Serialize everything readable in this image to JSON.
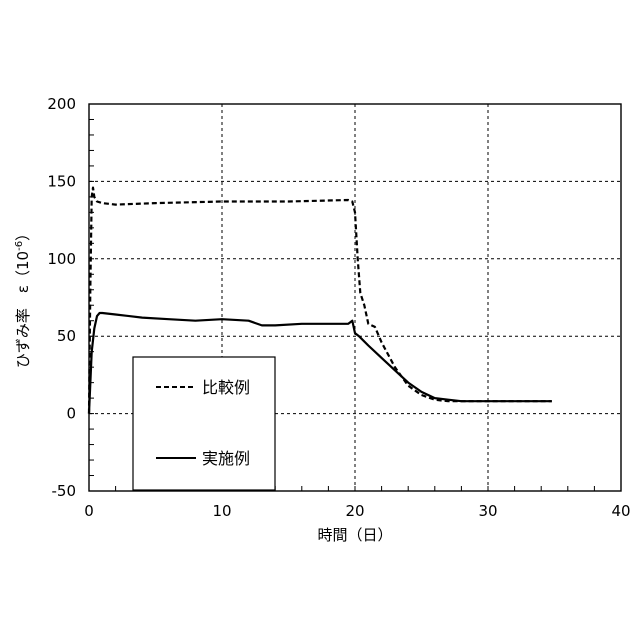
{
  "chart_data": {
    "type": "line",
    "xlabel": "時間（日）",
    "ylabel": "ひずみ率　ε（10",
    "ylabel_exp": "-6",
    "ylabel_close": "）",
    "xlim": [
      0,
      40
    ],
    "ylim": [
      -50,
      200
    ],
    "x_ticks": [
      0,
      10,
      20,
      30,
      40
    ],
    "y_ticks": [
      -50,
      0,
      50,
      100,
      150,
      200
    ],
    "x_tick_labels": [
      "0",
      "10",
      "20",
      "30",
      "40"
    ],
    "y_tick_labels": [
      "-50",
      "0",
      "50",
      "100",
      "150",
      "200"
    ],
    "grid": true,
    "legend_position": "lower-left",
    "series": [
      {
        "name": "比較例",
        "style": "dashed",
        "x": [
          0,
          0.1,
          0.2,
          0.3,
          0.4,
          0.6,
          1.0,
          2,
          5,
          10,
          15,
          19.5,
          19.8,
          20.0,
          20.2,
          20.4,
          20.7,
          21.0,
          21.5,
          22.0,
          23.0,
          24.0,
          25.0,
          26.0,
          27.0,
          28.0,
          30.0,
          32.0,
          34.8
        ],
        "y": [
          0,
          80,
          140,
          146,
          140,
          137,
          136,
          135,
          136,
          137,
          137,
          138,
          137,
          130,
          100,
          78,
          70,
          58,
          56,
          46,
          30,
          18,
          12,
          9,
          8,
          8,
          8,
          8,
          8
        ]
      },
      {
        "name": "実施例",
        "style": "solid",
        "x": [
          0,
          0.2,
          0.4,
          0.6,
          0.8,
          1.0,
          2,
          4,
          6,
          8,
          10,
          12,
          13,
          14,
          16,
          18,
          19.5,
          19.8,
          20.0,
          20.3,
          21.0,
          22.0,
          23.0,
          24.0,
          25.0,
          26.0,
          27.0,
          28.0,
          30.0,
          32.0,
          34.8
        ],
        "y": [
          0,
          40,
          55,
          63,
          65,
          65,
          64,
          62,
          61,
          60,
          61,
          60,
          57,
          57,
          58,
          58,
          58,
          60,
          52,
          50,
          44,
          36,
          28,
          20,
          14,
          10,
          9,
          8,
          8,
          8,
          8
        ]
      }
    ]
  }
}
